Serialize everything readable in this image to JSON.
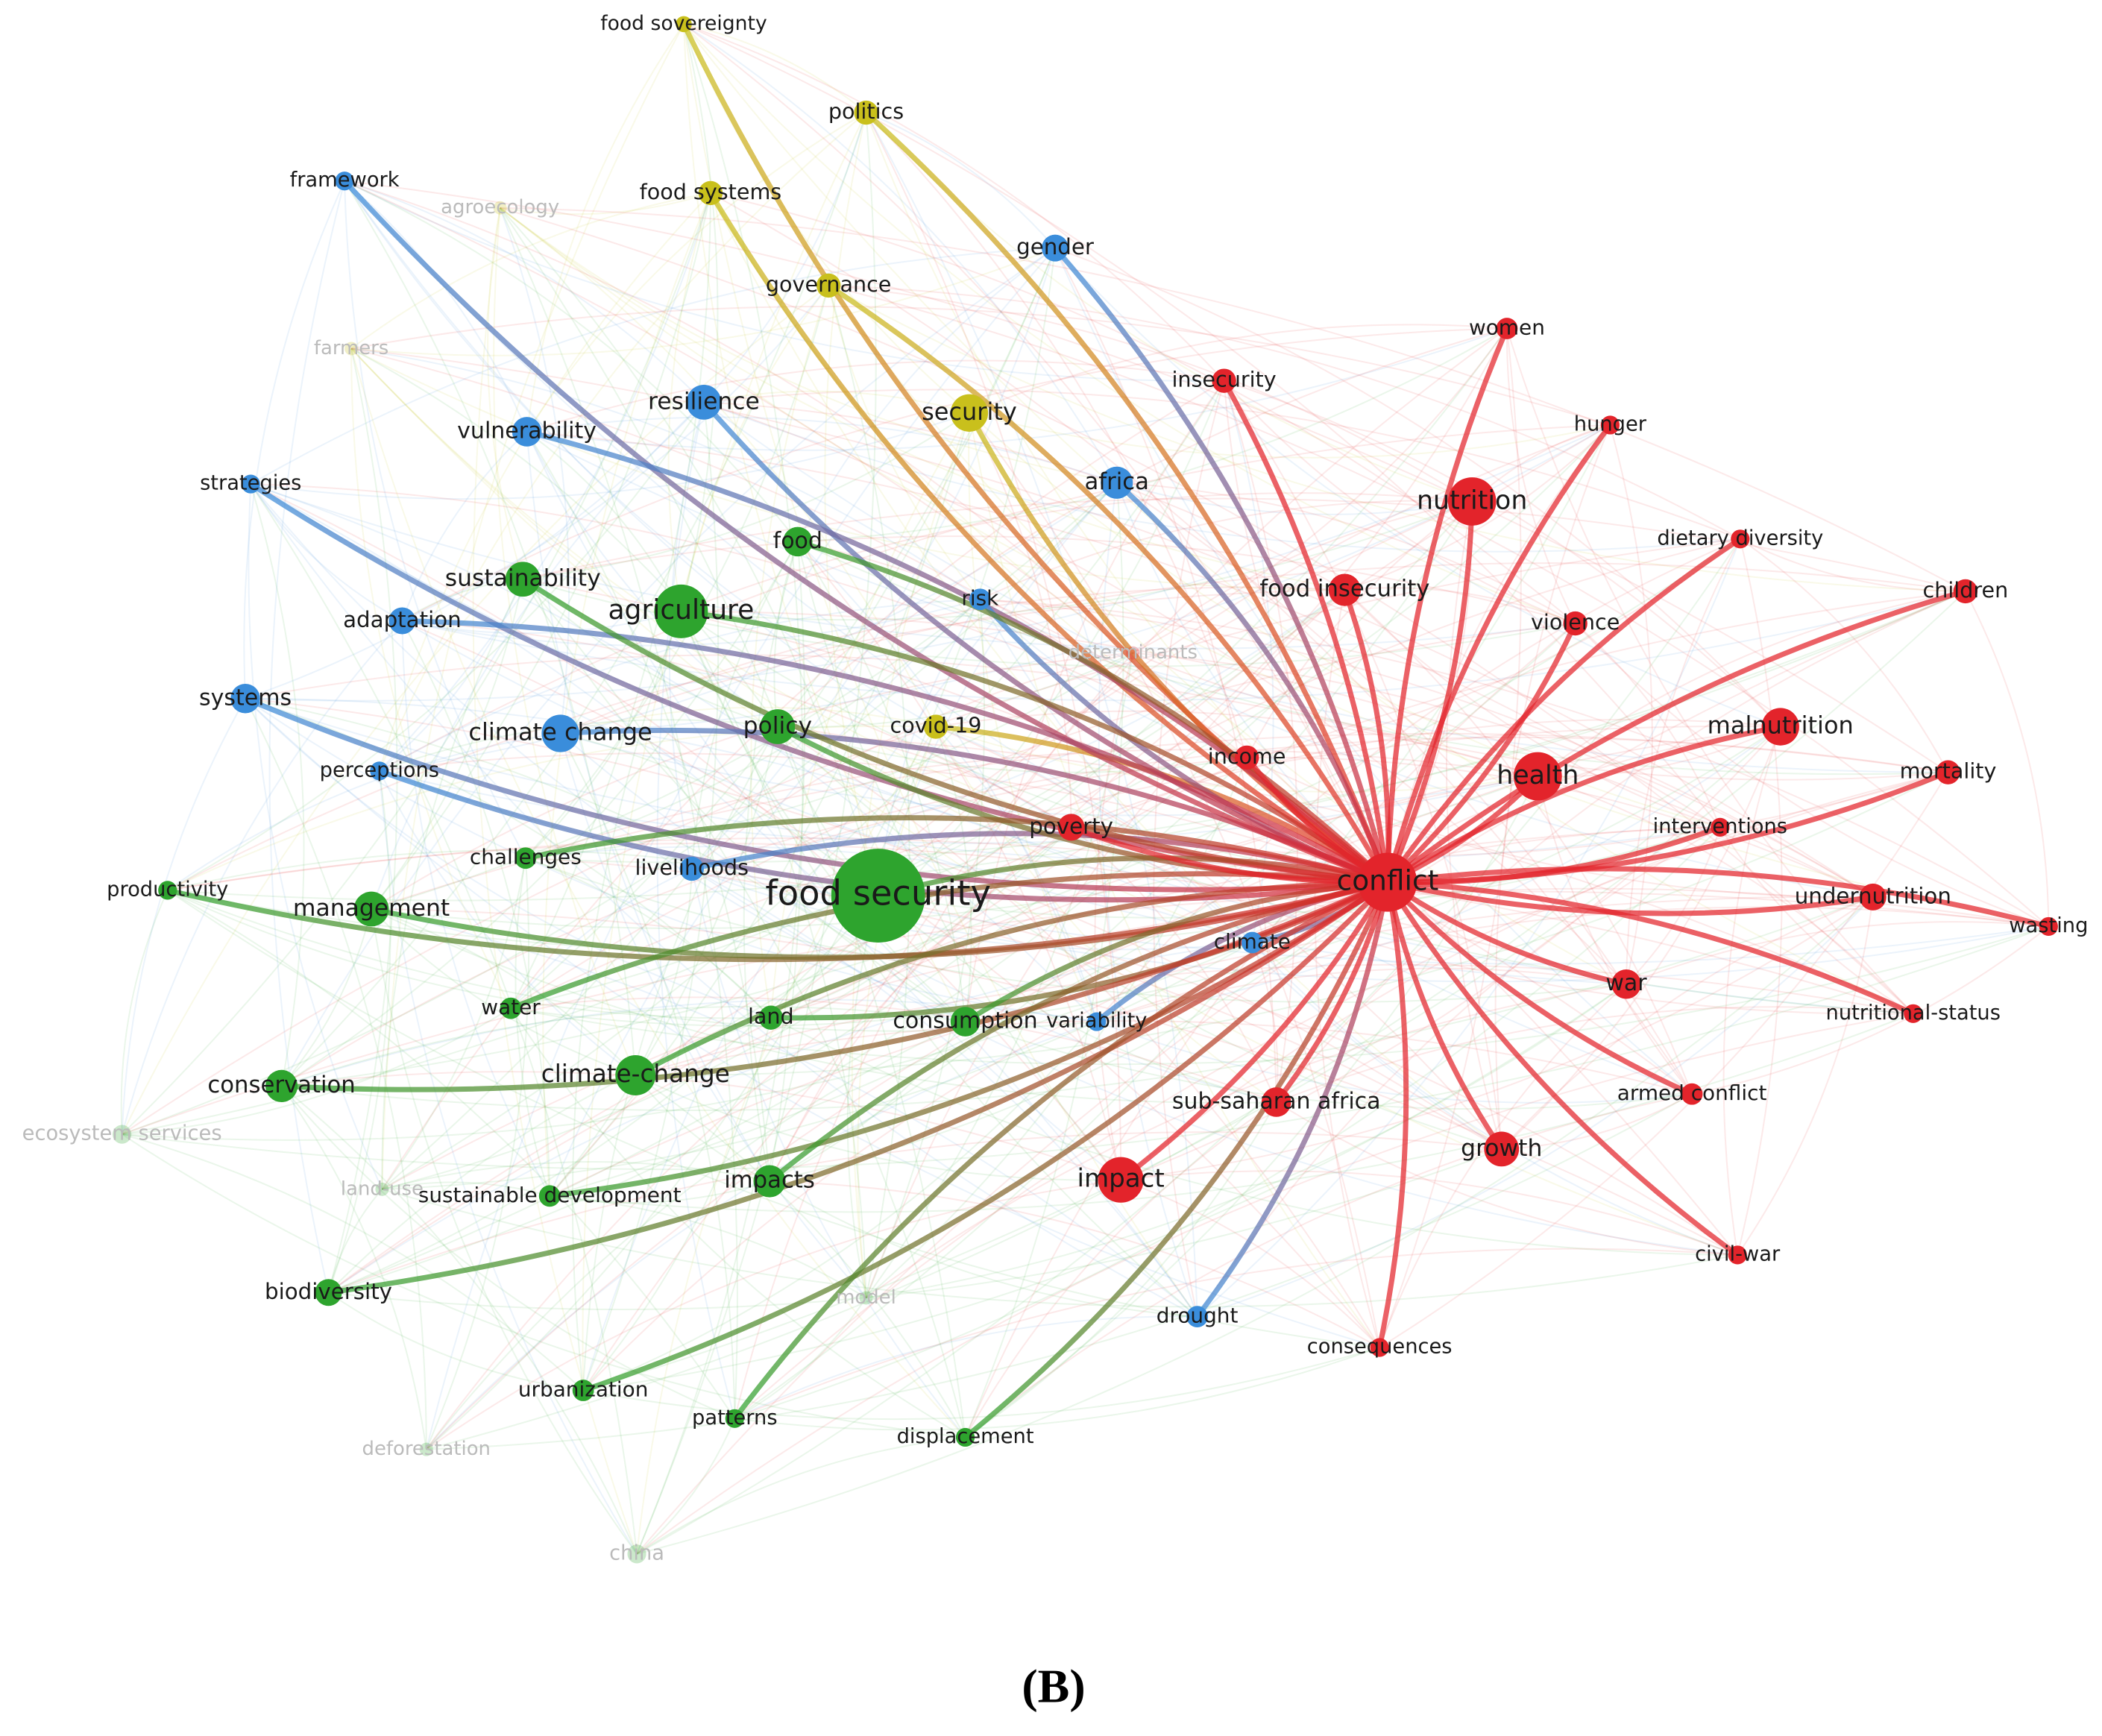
{
  "nodes": [
    {
      "label": "food sovereignty"
    },
    {
      "label": "politics"
    },
    {
      "label": "food systems"
    },
    {
      "label": "governance"
    },
    {
      "label": "security"
    },
    {
      "label": "covid-19"
    },
    {
      "label": "agroecology"
    },
    {
      "label": "farmers"
    },
    {
      "label": "framework"
    },
    {
      "label": "gender"
    },
    {
      "label": "resilience"
    },
    {
      "label": "vulnerability"
    },
    {
      "label": "strategies"
    },
    {
      "label": "africa"
    },
    {
      "label": "risk"
    },
    {
      "label": "adaptation"
    },
    {
      "label": "systems"
    },
    {
      "label": "climate change"
    },
    {
      "label": "perceptions"
    },
    {
      "label": "livelihoods"
    },
    {
      "label": "climate"
    },
    {
      "label": "variability"
    },
    {
      "label": "drought"
    },
    {
      "label": "food"
    },
    {
      "label": "sustainability"
    },
    {
      "label": "agriculture"
    },
    {
      "label": "policy"
    },
    {
      "label": "challenges"
    },
    {
      "label": "productivity"
    },
    {
      "label": "food security"
    },
    {
      "label": "management"
    },
    {
      "label": "water"
    },
    {
      "label": "land"
    },
    {
      "label": "consumption"
    },
    {
      "label": "conservation"
    },
    {
      "label": "climate-change"
    },
    {
      "label": "sustainable development"
    },
    {
      "label": "impacts"
    },
    {
      "label": "biodiversity"
    },
    {
      "label": "model"
    },
    {
      "label": "urbanization"
    },
    {
      "label": "patterns"
    },
    {
      "label": "displacement"
    },
    {
      "label": "ecosystem services"
    },
    {
      "label": "land-use"
    },
    {
      "label": "deforestation"
    },
    {
      "label": "china"
    },
    {
      "label": "determinants"
    },
    {
      "label": "women"
    },
    {
      "label": "insecurity"
    },
    {
      "label": "hunger"
    },
    {
      "label": "nutrition"
    },
    {
      "label": "dietary diversity"
    },
    {
      "label": "food insecurity"
    },
    {
      "label": "children"
    },
    {
      "label": "violence"
    },
    {
      "label": "malnutrition"
    },
    {
      "label": "health"
    },
    {
      "label": "income"
    },
    {
      "label": "mortality"
    },
    {
      "label": "poverty"
    },
    {
      "label": "interventions"
    },
    {
      "label": "conflict"
    },
    {
      "label": "undernutrition"
    },
    {
      "label": "wasting"
    },
    {
      "label": "war"
    },
    {
      "label": "nutritional-status"
    },
    {
      "label": "armed conflict"
    },
    {
      "label": "sub-saharan africa"
    },
    {
      "label": "growth"
    },
    {
      "label": "impact"
    },
    {
      "label": "civil-war"
    },
    {
      "label": "consequences"
    }
  ],
  "caption": "(B)"
}
